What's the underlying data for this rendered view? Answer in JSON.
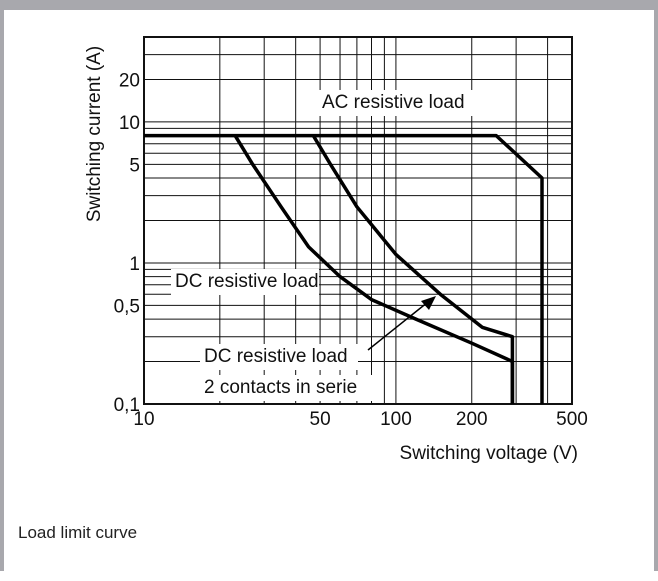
{
  "caption": "Load limit curve",
  "chart_data": {
    "type": "line",
    "title": "",
    "xlabel": "Switching voltage (V)",
    "ylabel": "Switching current (A)",
    "xscale": "log",
    "yscale": "log",
    "xlim": [
      10,
      500
    ],
    "ylim": [
      0.1,
      40
    ],
    "grid": true,
    "x_ticks": [
      {
        "value": 10,
        "label": "10"
      },
      {
        "value": 50,
        "label": "50"
      },
      {
        "value": 100,
        "label": "100"
      },
      {
        "value": 200,
        "label": "200"
      },
      {
        "value": 500,
        "label": "500"
      }
    ],
    "y_ticks": [
      {
        "value": 0.1,
        "label": "0,1"
      },
      {
        "value": 0.5,
        "label": "0,5"
      },
      {
        "value": 1,
        "label": "1"
      },
      {
        "value": 5,
        "label": "5"
      },
      {
        "value": 10,
        "label": "10"
      },
      {
        "value": 20,
        "label": "20"
      }
    ],
    "series": [
      {
        "name": "AC resistive load",
        "x": [
          10,
          250,
          380,
          380
        ],
        "y": [
          8,
          8,
          4,
          0.1
        ]
      },
      {
        "name": "DC resistive load",
        "x": [
          23,
          27,
          35,
          45,
          60,
          80,
          120,
          200,
          290,
          290
        ],
        "y": [
          8,
          5,
          2.5,
          1.3,
          0.8,
          0.55,
          0.4,
          0.27,
          0.2,
          0.1
        ]
      },
      {
        "name": "DC resistive load 2 contacts in serie",
        "x": [
          47,
          55,
          70,
          100,
          150,
          220,
          290,
          290
        ],
        "y": [
          8,
          5,
          2.5,
          1.15,
          0.6,
          0.35,
          0.3,
          0.1
        ]
      }
    ],
    "annotations": [
      {
        "text": "AC resistive load"
      },
      {
        "text": "DC resistive load"
      },
      {
        "text": "DC resistive load"
      },
      {
        "text": "2 contacts in serie"
      }
    ]
  }
}
